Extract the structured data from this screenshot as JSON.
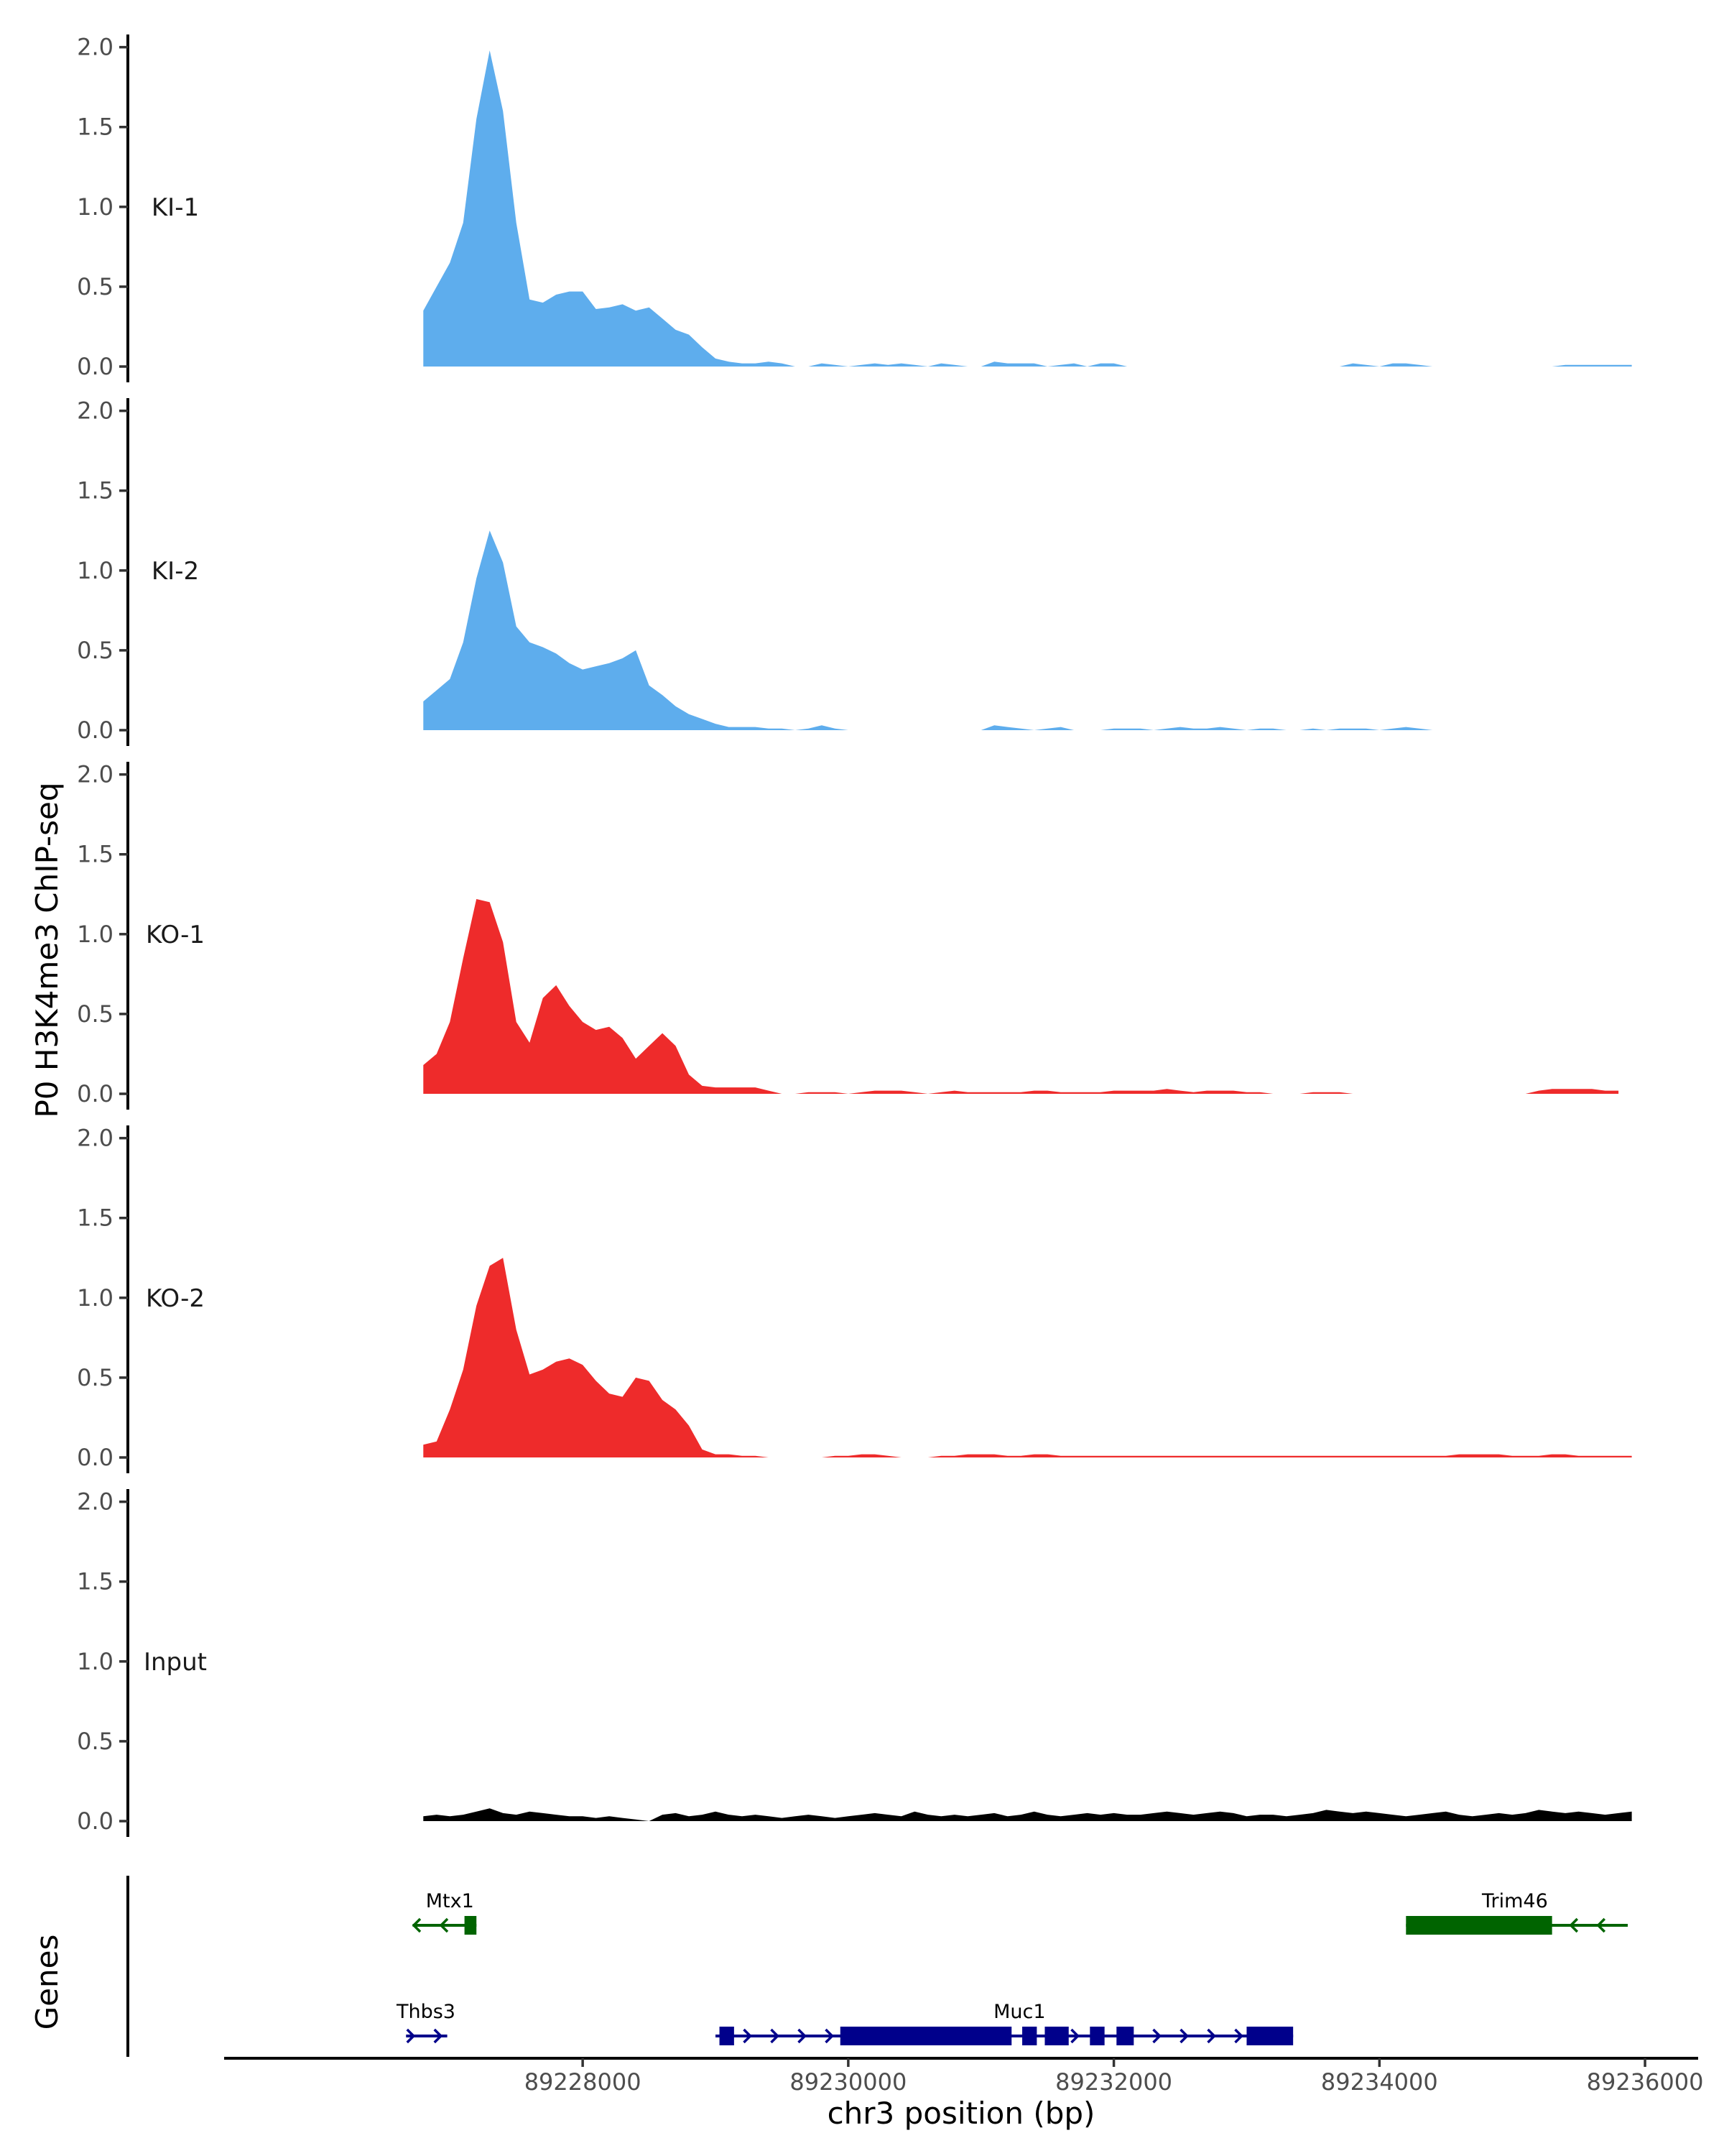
{
  "chart_data": {
    "type": "area",
    "ylabel": "P0 H3K4me3 ChIP-seq",
    "xlabel": "chr3 position (bp)",
    "genes_label": "Genes",
    "xlim": [
      89225300,
      89236400
    ],
    "x_ticks": [
      89228000,
      89230000,
      89232000,
      89234000,
      89236000
    ],
    "x_tick_labels": [
      "89228000",
      "89230000",
      "89232000",
      "89234000",
      "89236000"
    ],
    "ylim": [
      0,
      2.1
    ],
    "y_ticks": [
      0,
      0.5,
      1,
      1.5,
      2
    ],
    "y_tick_labels": [
      "0.0",
      "0.5",
      "1.0",
      "1.5",
      "2.0"
    ],
    "tracks": [
      {
        "name": "KI-1",
        "color": "#5eaded",
        "x": [
          89226800,
          89226900,
          89227000,
          89227100,
          89227200,
          89227300,
          89227400,
          89227500,
          89227600,
          89227700,
          89227800,
          89227900,
          89228000,
          89228100,
          89228200,
          89228300,
          89228400,
          89228500,
          89228600,
          89228700,
          89228800,
          89228900,
          89229000,
          89229100,
          89229200,
          89229300,
          89229400,
          89229500,
          89229600,
          89229700,
          89229800,
          89229900,
          89230000,
          89230100,
          89230200,
          89230300,
          89230400,
          89230500,
          89230600,
          89230700,
          89230800,
          89230900,
          89231000,
          89231100,
          89231200,
          89231300,
          89231400,
          89231500,
          89231600,
          89231700,
          89231800,
          89231900,
          89232000,
          89232100,
          89232200,
          89232300,
          89232400,
          89232500,
          89232600,
          89232700,
          89232800,
          89232900,
          89233000,
          89233100,
          89233200,
          89233300,
          89233400,
          89233500,
          89233600,
          89233700,
          89233800,
          89233900,
          89234000,
          89234100,
          89234200,
          89234300,
          89234400,
          89234500,
          89234600,
          89234700,
          89234800,
          89234900,
          89235000,
          89235100,
          89235200,
          89235300,
          89235400,
          89235500,
          89235600,
          89235700,
          89235800,
          89235900
        ],
        "values": [
          0.35,
          0.5,
          0.65,
          0.9,
          1.55,
          1.98,
          1.6,
          0.9,
          0.42,
          0.4,
          0.45,
          0.47,
          0.47,
          0.36,
          0.37,
          0.39,
          0.35,
          0.37,
          0.3,
          0.23,
          0.2,
          0.12,
          0.05,
          0.03,
          0.02,
          0.02,
          0.03,
          0.02,
          0,
          0,
          0.02,
          0.01,
          0,
          0.01,
          0.02,
          0.01,
          0.02,
          0.01,
          0,
          0.02,
          0.01,
          0,
          0,
          0.03,
          0.02,
          0.02,
          0.02,
          0,
          0.01,
          0.02,
          0,
          0.02,
          0.02,
          0,
          0,
          0,
          0,
          0,
          0,
          0,
          0,
          0,
          0,
          0,
          0,
          0,
          0,
          0,
          0,
          0,
          0.02,
          0.01,
          0,
          0.02,
          0.02,
          0.01,
          0,
          0,
          0,
          0,
          0,
          0,
          0,
          0,
          0,
          0,
          0.01,
          0.01,
          0.01,
          0.01,
          0.01,
          0.01
        ]
      },
      {
        "name": "KI-2",
        "color": "#5eaded",
        "x": [
          89226800,
          89226900,
          89227000,
          89227100,
          89227200,
          89227300,
          89227400,
          89227500,
          89227600,
          89227700,
          89227800,
          89227900,
          89228000,
          89228100,
          89228200,
          89228300,
          89228400,
          89228500,
          89228600,
          89228700,
          89228800,
          89228900,
          89229000,
          89229100,
          89229200,
          89229300,
          89229400,
          89229500,
          89229600,
          89229700,
          89229800,
          89229900,
          89230000,
          89230100,
          89230200,
          89230300,
          89230400,
          89230500,
          89230600,
          89230700,
          89230800,
          89230900,
          89231000,
          89231100,
          89231200,
          89231300,
          89231400,
          89231500,
          89231600,
          89231700,
          89231800,
          89231900,
          89232000,
          89232100,
          89232200,
          89232300,
          89232400,
          89232500,
          89232600,
          89232700,
          89232800,
          89232900,
          89233000,
          89233100,
          89233200,
          89233300,
          89233400,
          89233500,
          89233600,
          89233700,
          89233800,
          89233900,
          89234000,
          89234100,
          89234200,
          89234300,
          89234400,
          89234500,
          89234600,
          89234700,
          89234800,
          89234900,
          89235000
        ],
        "values": [
          0.18,
          0.25,
          0.32,
          0.55,
          0.95,
          1.25,
          1.05,
          0.65,
          0.55,
          0.52,
          0.48,
          0.42,
          0.38,
          0.4,
          0.42,
          0.45,
          0.5,
          0.28,
          0.22,
          0.15,
          0.1,
          0.07,
          0.04,
          0.02,
          0.02,
          0.02,
          0.01,
          0.01,
          0,
          0.01,
          0.03,
          0.01,
          0,
          0,
          0,
          0,
          0,
          0,
          0,
          0,
          0,
          0,
          0,
          0.03,
          0.02,
          0.01,
          0,
          0.01,
          0.02,
          0,
          0,
          0,
          0.01,
          0.01,
          0.01,
          0,
          0.01,
          0.02,
          0.01,
          0.01,
          0.02,
          0.01,
          0,
          0.01,
          0.01,
          0,
          0,
          0.01,
          0,
          0.01,
          0.01,
          0.01,
          0,
          0.01,
          0.02,
          0.01,
          0,
          0,
          0,
          0,
          0,
          0,
          0
        ]
      },
      {
        "name": "KO-1",
        "color": "#ee2b2b",
        "x": [
          89226800,
          89226900,
          89227000,
          89227100,
          89227200,
          89227300,
          89227400,
          89227500,
          89227600,
          89227700,
          89227800,
          89227900,
          89228000,
          89228100,
          89228200,
          89228300,
          89228400,
          89228500,
          89228600,
          89228700,
          89228800,
          89228900,
          89229000,
          89229100,
          89229200,
          89229300,
          89229400,
          89229500,
          89229600,
          89229700,
          89229800,
          89229900,
          89230000,
          89230100,
          89230200,
          89230300,
          89230400,
          89230500,
          89230600,
          89230700,
          89230800,
          89230900,
          89231000,
          89231100,
          89231200,
          89231300,
          89231400,
          89231500,
          89231600,
          89231700,
          89231800,
          89231900,
          89232000,
          89232100,
          89232200,
          89232300,
          89232400,
          89232500,
          89232600,
          89232700,
          89232800,
          89232900,
          89233000,
          89233100,
          89233200,
          89233300,
          89233400,
          89233500,
          89233600,
          89233700,
          89233800,
          89233900,
          89234000,
          89234100,
          89234200,
          89234300,
          89234400,
          89234500,
          89234600,
          89234700,
          89234800,
          89234900,
          89235000,
          89235100,
          89235200,
          89235300,
          89235400,
          89235500,
          89235600,
          89235700,
          89235800
        ],
        "values": [
          0.18,
          0.25,
          0.45,
          0.85,
          1.22,
          1.2,
          0.95,
          0.45,
          0.32,
          0.6,
          0.68,
          0.55,
          0.45,
          0.4,
          0.42,
          0.35,
          0.22,
          0.3,
          0.38,
          0.3,
          0.12,
          0.05,
          0.04,
          0.04,
          0.04,
          0.04,
          0.02,
          0,
          0,
          0.01,
          0.01,
          0.01,
          0,
          0.01,
          0.02,
          0.02,
          0.02,
          0.01,
          0,
          0.01,
          0.02,
          0.01,
          0.01,
          0.01,
          0.01,
          0.01,
          0.02,
          0.02,
          0.01,
          0.01,
          0.01,
          0.01,
          0.02,
          0.02,
          0.02,
          0.02,
          0.03,
          0.02,
          0.01,
          0.02,
          0.02,
          0.02,
          0.01,
          0.01,
          0,
          0,
          0,
          0.01,
          0.01,
          0.01,
          0,
          0,
          0,
          0,
          0,
          0,
          0,
          0,
          0,
          0,
          0,
          0,
          0,
          0,
          0.02,
          0.03,
          0.03,
          0.03,
          0.03,
          0.02,
          0.02
        ]
      },
      {
        "name": "KO-2",
        "color": "#ee2b2b",
        "x": [
          89226800,
          89226900,
          89227000,
          89227100,
          89227200,
          89227300,
          89227400,
          89227500,
          89227600,
          89227700,
          89227800,
          89227900,
          89228000,
          89228100,
          89228200,
          89228300,
          89228400,
          89228500,
          89228600,
          89228700,
          89228800,
          89228900,
          89229000,
          89229100,
          89229200,
          89229300,
          89229400,
          89229500,
          89229600,
          89229700,
          89229800,
          89229900,
          89230000,
          89230100,
          89230200,
          89230300,
          89230400,
          89230500,
          89230600,
          89230700,
          89230800,
          89230900,
          89231000,
          89231100,
          89231200,
          89231300,
          89231400,
          89231500,
          89231600,
          89231700,
          89231800,
          89231900,
          89232000,
          89232100,
          89232200,
          89232300,
          89232400,
          89232500,
          89232600,
          89232700,
          89232800,
          89232900,
          89233000,
          89233100,
          89233200,
          89233300,
          89233400,
          89233500,
          89233600,
          89233700,
          89233800,
          89233900,
          89234000,
          89234100,
          89234200,
          89234300,
          89234400,
          89234500,
          89234600,
          89234700,
          89234800,
          89234900,
          89235000,
          89235100,
          89235200,
          89235300,
          89235400,
          89235500,
          89235600,
          89235700,
          89235800,
          89235900
        ],
        "values": [
          0.08,
          0.1,
          0.3,
          0.55,
          0.95,
          1.2,
          1.25,
          0.8,
          0.52,
          0.55,
          0.6,
          0.62,
          0.58,
          0.48,
          0.4,
          0.38,
          0.5,
          0.48,
          0.36,
          0.3,
          0.2,
          0.05,
          0.02,
          0.02,
          0.01,
          0.01,
          0,
          0,
          0,
          0,
          0,
          0.01,
          0.01,
          0.02,
          0.02,
          0.01,
          0,
          0,
          0,
          0.01,
          0.01,
          0.02,
          0.02,
          0.02,
          0.01,
          0.01,
          0.02,
          0.02,
          0.01,
          0.01,
          0.01,
          0.01,
          0.01,
          0.01,
          0.01,
          0.01,
          0.01,
          0.01,
          0.01,
          0.01,
          0.01,
          0.01,
          0.01,
          0.01,
          0.01,
          0.01,
          0.01,
          0.01,
          0.01,
          0.01,
          0.01,
          0.01,
          0.01,
          0.01,
          0.01,
          0.01,
          0.01,
          0.01,
          0.02,
          0.02,
          0.02,
          0.02,
          0.01,
          0.01,
          0.01,
          0.02,
          0.02,
          0.01,
          0.01,
          0.01,
          0.01,
          0.01
        ]
      },
      {
        "name": "Input",
        "color": "#000000",
        "x": [
          89226800,
          89226900,
          89227000,
          89227100,
          89227200,
          89227300,
          89227400,
          89227500,
          89227600,
          89227700,
          89227800,
          89227900,
          89228000,
          89228100,
          89228200,
          89228300,
          89228400,
          89228500,
          89228600,
          89228700,
          89228800,
          89228900,
          89229000,
          89229100,
          89229200,
          89229300,
          89229400,
          89229500,
          89229600,
          89229700,
          89229800,
          89229900,
          89230000,
          89230100,
          89230200,
          89230300,
          89230400,
          89230500,
          89230600,
          89230700,
          89230800,
          89230900,
          89231000,
          89231100,
          89231200,
          89231300,
          89231400,
          89231500,
          89231600,
          89231700,
          89231800,
          89231900,
          89232000,
          89232100,
          89232200,
          89232300,
          89232400,
          89232500,
          89232600,
          89232700,
          89232800,
          89232900,
          89233000,
          89233100,
          89233200,
          89233300,
          89233400,
          89233500,
          89233600,
          89233700,
          89233800,
          89233900,
          89234000,
          89234100,
          89234200,
          89234300,
          89234400,
          89234500,
          89234600,
          89234700,
          89234800,
          89234900,
          89235000,
          89235100,
          89235200,
          89235300,
          89235400,
          89235500,
          89235600,
          89235700,
          89235800,
          89235900
        ],
        "values": [
          0.03,
          0.04,
          0.03,
          0.04,
          0.06,
          0.08,
          0.05,
          0.04,
          0.06,
          0.05,
          0.04,
          0.03,
          0.03,
          0.02,
          0.03,
          0.02,
          0.01,
          0.0,
          0.04,
          0.05,
          0.03,
          0.04,
          0.06,
          0.04,
          0.03,
          0.04,
          0.03,
          0.02,
          0.03,
          0.04,
          0.03,
          0.02,
          0.03,
          0.04,
          0.05,
          0.04,
          0.03,
          0.06,
          0.04,
          0.03,
          0.04,
          0.03,
          0.04,
          0.05,
          0.03,
          0.04,
          0.06,
          0.04,
          0.03,
          0.04,
          0.05,
          0.04,
          0.05,
          0.04,
          0.04,
          0.05,
          0.06,
          0.05,
          0.04,
          0.05,
          0.06,
          0.05,
          0.03,
          0.04,
          0.04,
          0.03,
          0.04,
          0.05,
          0.07,
          0.06,
          0.05,
          0.06,
          0.05,
          0.04,
          0.03,
          0.04,
          0.05,
          0.06,
          0.04,
          0.03,
          0.04,
          0.05,
          0.04,
          0.05,
          0.07,
          0.06,
          0.05,
          0.06,
          0.05,
          0.04,
          0.05,
          0.06
        ]
      }
    ],
    "genes": [
      {
        "name": "Mtx1",
        "strand": "-",
        "color": "#006400",
        "row": 0,
        "start": 89226720,
        "end": 89227200,
        "exons": [
          [
            89227110,
            89227200
          ]
        ],
        "label_x": 89227000
      },
      {
        "name": "Trim46",
        "strand": "-",
        "color": "#006400",
        "row": 0,
        "start": 89234200,
        "end": 89235870,
        "exons": [
          [
            89234200,
            89235300
          ]
        ],
        "label_x": 89235020
      },
      {
        "name": "Thbs3",
        "strand": "+",
        "color": "#00008b",
        "row": 1,
        "start": 89226670,
        "end": 89226980,
        "exons": [],
        "label_x": 89226820
      },
      {
        "name": "Muc1",
        "strand": "+",
        "color": "#00008b",
        "row": 1,
        "start": 89229000,
        "end": 89233350,
        "exons": [
          [
            89229030,
            89229140
          ],
          [
            89229940,
            89231230
          ],
          [
            89231310,
            89231420
          ],
          [
            89231480,
            89231660
          ],
          [
            89231820,
            89231930
          ],
          [
            89232020,
            89232150
          ],
          [
            89233000,
            89233350
          ]
        ],
        "label_x": 89231290
      }
    ]
  }
}
